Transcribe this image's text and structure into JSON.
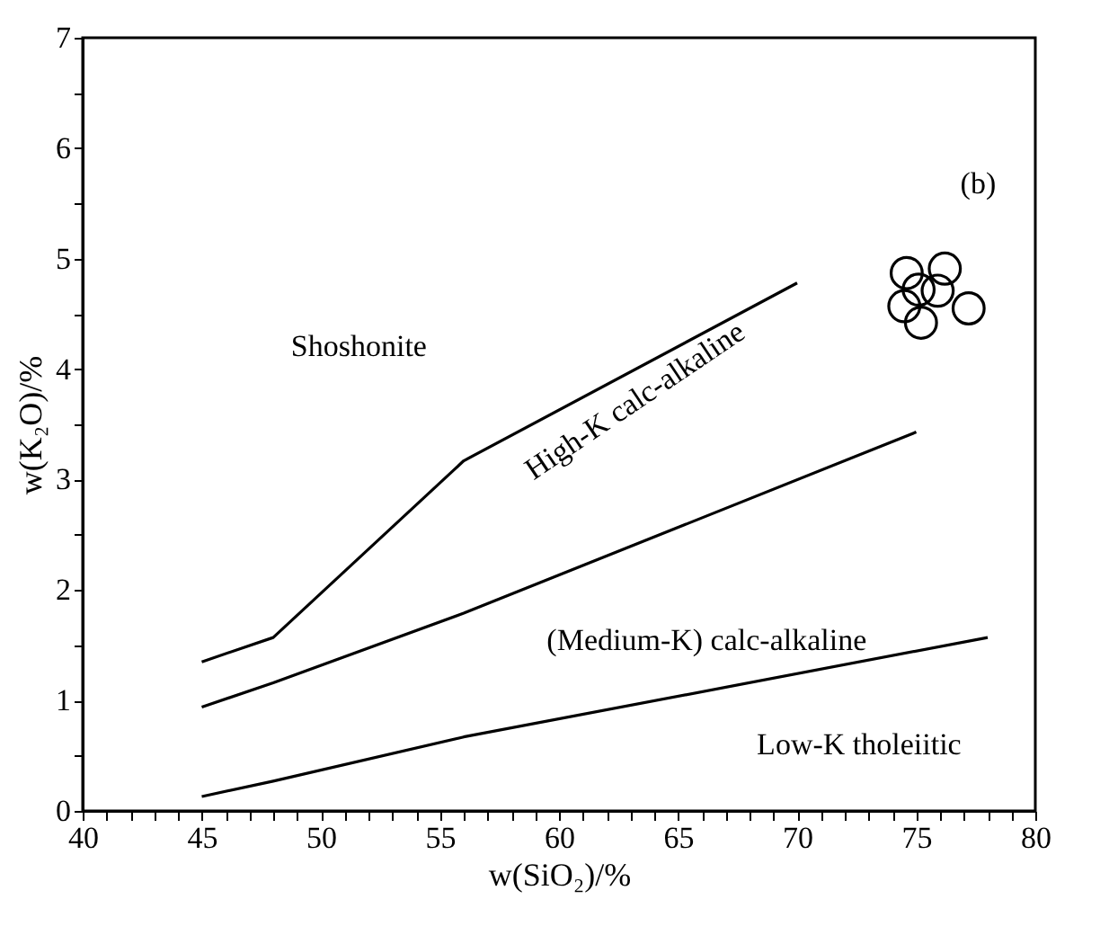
{
  "chart_data": {
    "type": "line",
    "xlabel": "w(SiO₂)/%",
    "ylabel": "w(K₂O)/%",
    "xlim": [
      40,
      80
    ],
    "ylim": [
      0,
      7
    ],
    "xticks": [
      40,
      {
        "value": 41,
        "label": null
      },
      {
        "value": 42,
        "label": null
      },
      {
        "value": 43,
        "label": null
      },
      {
        "value": 44,
        "label": null
      },
      45,
      {
        "value": 46,
        "label": null
      },
      {
        "value": 47,
        "label": null
      },
      {
        "value": 48,
        "label": null
      },
      {
        "value": 49,
        "label": null
      },
      50,
      {
        "value": 51,
        "label": null
      },
      {
        "value": 52,
        "label": null
      },
      {
        "value": 53,
        "label": null
      },
      {
        "value": 54,
        "label": null
      },
      55,
      {
        "value": 56,
        "label": null
      },
      {
        "value": 57,
        "label": null
      },
      {
        "value": 58,
        "label": null
      },
      {
        "value": 59,
        "label": null
      },
      60,
      {
        "value": 61,
        "label": null
      },
      {
        "value": 62,
        "label": null
      },
      {
        "value": 63,
        "label": null
      },
      {
        "value": 64,
        "label": null
      },
      65,
      {
        "value": 66,
        "label": null
      },
      {
        "value": 67,
        "label": null
      },
      {
        "value": 68,
        "label": null
      },
      {
        "value": 69,
        "label": null
      },
      70,
      {
        "value": 71,
        "label": null
      },
      {
        "value": 72,
        "label": null
      },
      {
        "value": 73,
        "label": null
      },
      {
        "value": 74,
        "label": null
      },
      75,
      {
        "value": 76,
        "label": null
      },
      {
        "value": 77,
        "label": null
      },
      {
        "value": 78,
        "label": null
      },
      {
        "value": 79,
        "label": null
      },
      80
    ],
    "yticks": [
      0,
      {
        "value": 0.5,
        "label": null
      },
      1,
      {
        "value": 1.5,
        "label": null
      },
      2,
      {
        "value": 2.5,
        "label": null
      },
      3,
      {
        "value": 3.5,
        "label": null
      },
      4,
      {
        "value": 4.5,
        "label": null
      },
      5,
      {
        "value": 5.5,
        "label": null
      },
      6,
      {
        "value": 6.5,
        "label": null
      },
      7
    ],
    "grid": false,
    "marker": "none",
    "line_style": "solid",
    "series": [
      {
        "color": "#000000",
        "x": [
          45,
          48,
          56,
          70
        ],
        "values": [
          1.35,
          1.57,
          3.17,
          4.78
        ]
      },
      {
        "color": "#000000",
        "x": [
          45,
          48,
          56,
          75
        ],
        "values": [
          0.94,
          1.16,
          1.79,
          3.43
        ]
      },
      {
        "color": "#000000",
        "x": [
          45,
          48,
          56,
          78
        ],
        "values": [
          0.13,
          0.27,
          0.67,
          1.57
        ]
      },
      {
        "type": "scatter",
        "color": "#000000",
        "marker": "circle",
        "x": [
          74.6,
          76.2,
          75.1,
          75.9,
          74.5,
          75.2,
          77.2
        ],
        "values": [
          4.87,
          4.91,
          4.72,
          4.71,
          4.57,
          4.42,
          4.55
        ]
      }
    ],
    "annotations": [
      "Shoshonite",
      "High-K calc-alkaline",
      "(Medium-K) calc-alkaline",
      "Low-K tholeiitic",
      "(b)"
    ]
  }
}
